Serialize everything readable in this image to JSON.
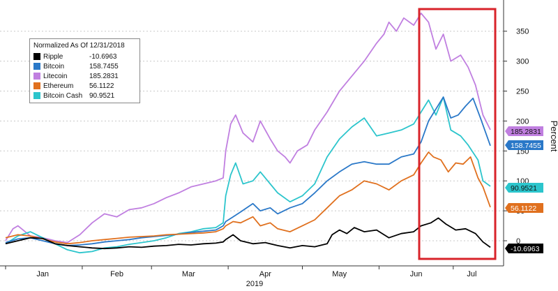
{
  "chart_data": {
    "type": "line",
    "ylabel": "Percent",
    "ylim": [
      -30,
      390
    ],
    "yticks": [
      0,
      50,
      100,
      150,
      200,
      250,
      300,
      350
    ],
    "ytick_labels": [
      "0",
      "50",
      "100",
      "150",
      "200",
      "250",
      "300",
      "350"
    ],
    "month_labels": [
      "Jan",
      "Feb",
      "Mar",
      "Apr",
      "May",
      "Jun",
      "Jul"
    ],
    "year_label": "2019",
    "legend_title": "Normalized As Of 12/31/2018",
    "legend_placement": "top-left",
    "highlight_box": "red rectangle over June to early July",
    "x_start_day": 0,
    "x_end_day": 196,
    "series": [
      {
        "name": "Ripple",
        "color": "#000000",
        "last_label": "-10.6963",
        "legend_value": "-10.6963",
        "points": [
          [
            0,
            -5
          ],
          [
            5,
            0
          ],
          [
            10,
            5
          ],
          [
            15,
            4
          ],
          [
            20,
            -5
          ],
          [
            25,
            -8
          ],
          [
            30,
            -10
          ],
          [
            35,
            -12
          ],
          [
            40,
            -13
          ],
          [
            45,
            -12
          ],
          [
            50,
            -10
          ],
          [
            55,
            -11
          ],
          [
            60,
            -9
          ],
          [
            65,
            -8
          ],
          [
            70,
            -6
          ],
          [
            75,
            -7
          ],
          [
            80,
            -5
          ],
          [
            85,
            -4
          ],
          [
            88,
            -2
          ],
          [
            89,
            2
          ],
          [
            92,
            10
          ],
          [
            95,
            0
          ],
          [
            100,
            -5
          ],
          [
            105,
            -3
          ],
          [
            110,
            -8
          ],
          [
            115,
            -12
          ],
          [
            120,
            -8
          ],
          [
            125,
            -10
          ],
          [
            130,
            -5
          ],
          [
            132,
            10
          ],
          [
            135,
            18
          ],
          [
            138,
            12
          ],
          [
            141,
            22
          ],
          [
            145,
            15
          ],
          [
            150,
            18
          ],
          [
            155,
            5
          ],
          [
            160,
            12
          ],
          [
            165,
            15
          ],
          [
            168,
            25
          ],
          [
            172,
            30
          ],
          [
            175,
            38
          ],
          [
            178,
            28
          ],
          [
            182,
            18
          ],
          [
            186,
            20
          ],
          [
            190,
            12
          ],
          [
            193,
            -2
          ],
          [
            196,
            -11
          ]
        ]
      },
      {
        "name": "Bitcoin",
        "color": "#2a78c8",
        "last_label": "158.7455",
        "legend_value": "158.7455",
        "points": [
          [
            0,
            -3
          ],
          [
            5,
            3
          ],
          [
            10,
            5
          ],
          [
            15,
            0
          ],
          [
            20,
            -5
          ],
          [
            25,
            -8
          ],
          [
            30,
            -7
          ],
          [
            35,
            -5
          ],
          [
            40,
            -2
          ],
          [
            45,
            0
          ],
          [
            50,
            2
          ],
          [
            55,
            5
          ],
          [
            60,
            7
          ],
          [
            65,
            9
          ],
          [
            70,
            11
          ],
          [
            75,
            14
          ],
          [
            80,
            16
          ],
          [
            85,
            18
          ],
          [
            88,
            25
          ],
          [
            89,
            32
          ],
          [
            92,
            40
          ],
          [
            95,
            48
          ],
          [
            100,
            62
          ],
          [
            103,
            50
          ],
          [
            107,
            55
          ],
          [
            110,
            45
          ],
          [
            115,
            55
          ],
          [
            120,
            62
          ],
          [
            125,
            80
          ],
          [
            130,
            100
          ],
          [
            135,
            115
          ],
          [
            140,
            128
          ],
          [
            145,
            132
          ],
          [
            150,
            128
          ],
          [
            155,
            128
          ],
          [
            160,
            140
          ],
          [
            165,
            145
          ],
          [
            168,
            165
          ],
          [
            171,
            200
          ],
          [
            174,
            220
          ],
          [
            177,
            240
          ],
          [
            180,
            205
          ],
          [
            183,
            210
          ],
          [
            186,
            225
          ],
          [
            189,
            238
          ],
          [
            192,
            205
          ],
          [
            196,
            158.7
          ]
        ]
      },
      {
        "name": "Litecoin",
        "color": "#c07fe0",
        "last_label": "185.2831",
        "legend_value": "185.2831",
        "points": [
          [
            0,
            0
          ],
          [
            3,
            20
          ],
          [
            5,
            25
          ],
          [
            10,
            8
          ],
          [
            15,
            5
          ],
          [
            20,
            0
          ],
          [
            25,
            -3
          ],
          [
            30,
            10
          ],
          [
            35,
            30
          ],
          [
            40,
            45
          ],
          [
            45,
            40
          ],
          [
            50,
            52
          ],
          [
            55,
            55
          ],
          [
            60,
            62
          ],
          [
            65,
            72
          ],
          [
            70,
            80
          ],
          [
            75,
            90
          ],
          [
            80,
            95
          ],
          [
            85,
            100
          ],
          [
            88,
            105
          ],
          [
            89,
            150
          ],
          [
            91,
            195
          ],
          [
            93,
            210
          ],
          [
            96,
            180
          ],
          [
            100,
            165
          ],
          [
            103,
            200
          ],
          [
            107,
            170
          ],
          [
            110,
            150
          ],
          [
            113,
            140
          ],
          [
            115,
            130
          ],
          [
            118,
            150
          ],
          [
            122,
            160
          ],
          [
            125,
            185
          ],
          [
            130,
            215
          ],
          [
            135,
            250
          ],
          [
            140,
            275
          ],
          [
            145,
            300
          ],
          [
            150,
            330
          ],
          [
            153,
            345
          ],
          [
            155,
            365
          ],
          [
            158,
            350
          ],
          [
            161,
            372
          ],
          [
            165,
            360
          ],
          [
            168,
            380
          ],
          [
            171,
            365
          ],
          [
            174,
            320
          ],
          [
            177,
            345
          ],
          [
            180,
            300
          ],
          [
            184,
            310
          ],
          [
            187,
            290
          ],
          [
            190,
            260
          ],
          [
            193,
            210
          ],
          [
            196,
            185.3
          ]
        ]
      },
      {
        "name": "Ethereum",
        "color": "#e0701e",
        "last_label": "56.1122",
        "legend_value": "56.1122",
        "points": [
          [
            0,
            5
          ],
          [
            5,
            10
          ],
          [
            10,
            8
          ],
          [
            15,
            3
          ],
          [
            20,
            -2
          ],
          [
            25,
            -5
          ],
          [
            30,
            -3
          ],
          [
            35,
            0
          ],
          [
            40,
            2
          ],
          [
            45,
            4
          ],
          [
            50,
            6
          ],
          [
            55,
            7
          ],
          [
            60,
            8
          ],
          [
            65,
            10
          ],
          [
            70,
            11
          ],
          [
            75,
            12
          ],
          [
            80,
            13
          ],
          [
            85,
            15
          ],
          [
            88,
            20
          ],
          [
            89,
            25
          ],
          [
            92,
            32
          ],
          [
            95,
            30
          ],
          [
            100,
            40
          ],
          [
            103,
            25
          ],
          [
            107,
            30
          ],
          [
            110,
            20
          ],
          [
            115,
            15
          ],
          [
            120,
            25
          ],
          [
            125,
            35
          ],
          [
            130,
            55
          ],
          [
            135,
            75
          ],
          [
            140,
            85
          ],
          [
            145,
            100
          ],
          [
            150,
            95
          ],
          [
            155,
            85
          ],
          [
            160,
            100
          ],
          [
            165,
            110
          ],
          [
            168,
            130
          ],
          [
            171,
            148
          ],
          [
            173,
            140
          ],
          [
            176,
            135
          ],
          [
            179,
            115
          ],
          [
            182,
            130
          ],
          [
            185,
            128
          ],
          [
            188,
            140
          ],
          [
            191,
            105
          ],
          [
            193,
            90
          ],
          [
            196,
            56.1
          ]
        ]
      },
      {
        "name": "Bitcoin Cash",
        "color": "#2cc5cc",
        "last_label": "90.9521",
        "legend_value": "90.9521",
        "points": [
          [
            0,
            -5
          ],
          [
            5,
            8
          ],
          [
            10,
            15
          ],
          [
            15,
            5
          ],
          [
            20,
            -5
          ],
          [
            25,
            -15
          ],
          [
            30,
            -20
          ],
          [
            35,
            -18
          ],
          [
            40,
            -12
          ],
          [
            45,
            -10
          ],
          [
            50,
            -6
          ],
          [
            55,
            -3
          ],
          [
            60,
            0
          ],
          [
            65,
            5
          ],
          [
            70,
            12
          ],
          [
            75,
            15
          ],
          [
            80,
            20
          ],
          [
            85,
            22
          ],
          [
            88,
            30
          ],
          [
            89,
            75
          ],
          [
            91,
            110
          ],
          [
            93,
            130
          ],
          [
            96,
            95
          ],
          [
            100,
            100
          ],
          [
            103,
            115
          ],
          [
            107,
            95
          ],
          [
            110,
            80
          ],
          [
            115,
            65
          ],
          [
            120,
            75
          ],
          [
            125,
            95
          ],
          [
            130,
            140
          ],
          [
            135,
            170
          ],
          [
            140,
            190
          ],
          [
            145,
            205
          ],
          [
            150,
            175
          ],
          [
            155,
            180
          ],
          [
            160,
            185
          ],
          [
            165,
            195
          ],
          [
            168,
            215
          ],
          [
            171,
            235
          ],
          [
            174,
            210
          ],
          [
            177,
            240
          ],
          [
            180,
            185
          ],
          [
            184,
            175
          ],
          [
            187,
            160
          ],
          [
            191,
            135
          ],
          [
            193,
            100
          ],
          [
            196,
            91
          ]
        ]
      }
    ]
  }
}
